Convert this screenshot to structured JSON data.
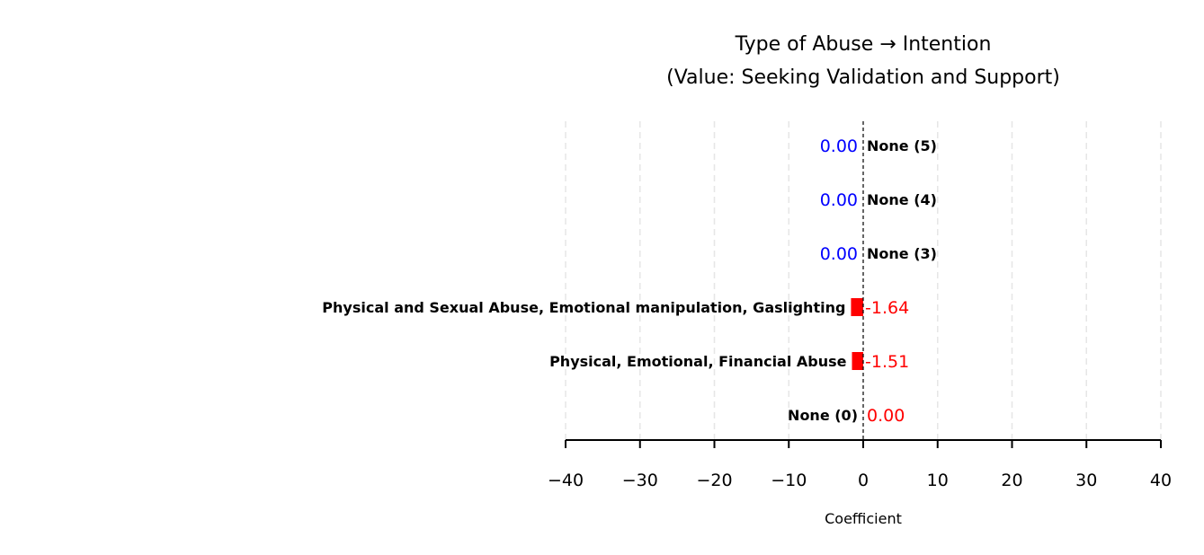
{
  "chart_data": {
    "type": "bar",
    "orientation": "horizontal",
    "title_line1": "Type of Abuse → Intention",
    "title_line2": "(Value: Seeking Validation and Support)",
    "xlabel": "Coefficient",
    "xlim": [
      -40,
      40
    ],
    "xticks": [
      -40,
      -30,
      -20,
      -10,
      0,
      10,
      20,
      30,
      40
    ],
    "xtick_labels": [
      "−40",
      "−30",
      "−20",
      "−10",
      "0",
      "10",
      "20",
      "30",
      "40"
    ],
    "grid": true,
    "categories": [
      "None (5)",
      "None (4)",
      "None (3)",
      "Physical and Sexual Abuse, Emotional manipulation, Gaslighting",
      "Physical, Emotional, Financial Abuse",
      "None (0)"
    ],
    "values": [
      0.0,
      0.0,
      0.0,
      -1.64,
      -1.51,
      0.0
    ],
    "value_labels": [
      "0.00",
      "0.00",
      "0.00",
      "-1.64",
      "-1.51",
      "0.00"
    ],
    "value_label_colors": [
      "#0000ff",
      "#0000ff",
      "#0000ff",
      "#ff0000",
      "#ff0000",
      "#ff0000"
    ],
    "bar_color": "#ff0000",
    "zero_line": "dashed"
  }
}
